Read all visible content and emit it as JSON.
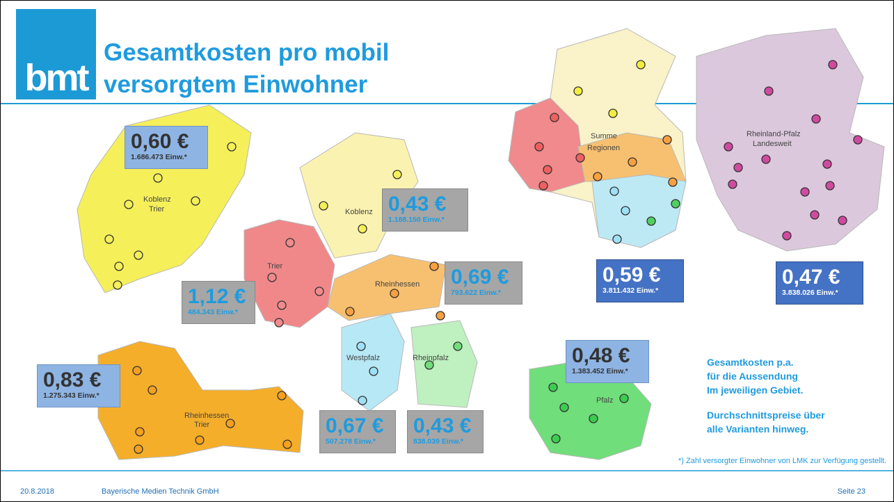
{
  "header": {
    "logo": "bmt",
    "title_lines": [
      "Gesamtkosten pro mobil",
      "versorgtem Einwohner"
    ]
  },
  "map_labels": [
    "Koblenz",
    "Trier",
    "Koblenz",
    "Trier",
    "Rheinhessen",
    "Westpfalz",
    "Rheinpfalz",
    "Rheinhessen",
    "Trier",
    "Pfalz",
    "Summe",
    "Regionen",
    "Rheinland-Pfalz",
    "Landesweit"
  ],
  "boxes": [
    {
      "price": "0,60 €",
      "population": "1.686.473 Einw.*"
    },
    {
      "price": "0,43 €",
      "population": "1.188.150 Einw.*"
    },
    {
      "price": "1,12 €",
      "population": "484.343 Einw.*"
    },
    {
      "price": "0,69 €",
      "population": "793.622 Einw.*"
    },
    {
      "price": "0,83 €",
      "population": "1.275.343 Einw.*"
    },
    {
      "price": "0,67 €",
      "population": "507.278 Einw.*"
    },
    {
      "price": "0,43 €",
      "population": "838.039 Einw.*"
    },
    {
      "price": "0,48 €",
      "population": "1.383.452 Einw.*"
    },
    {
      "price": "0,59 €",
      "population": "3.811.432 Einw.*"
    },
    {
      "price": "0,47 €",
      "population": "3.838.026 Einw.*"
    }
  ],
  "notes": [
    "Gesamtkosten p.a.",
    "für die Aussendung",
    "Im jeweiligen Gebiet.",
    "Durchschnittspreise über",
    "alle Varianten hinweg."
  ],
  "footnote": "*) Zahl versorgter Einwohner von LMK zur Verfügung gestellt.",
  "footer": {
    "date": "20.8.2018",
    "company": "Bayerische Medien Technik GmbH",
    "page": "Seite 23"
  }
}
